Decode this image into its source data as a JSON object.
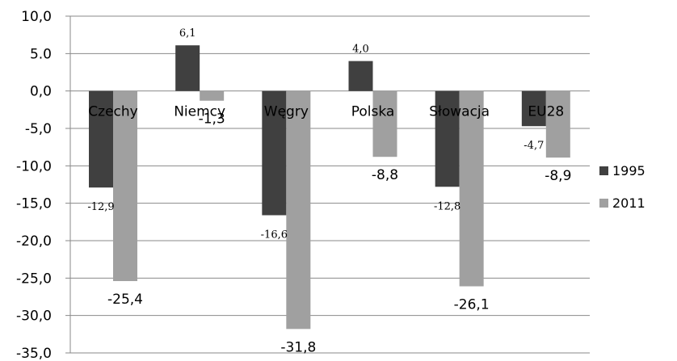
{
  "chart_data": {
    "type": "bar",
    "title": "",
    "xlabel": "",
    "ylabel": "",
    "categories": [
      "Czechy",
      "Niemcy",
      "Węgry",
      "Polska",
      "Słowacja",
      "EU28"
    ],
    "series": [
      {
        "name": "1995",
        "color": "#404040",
        "values": [
          -12.9,
          6.1,
          -16.6,
          4.0,
          -12.8,
          -4.7
        ],
        "labels": [
          "-12,9",
          "6,1",
          "-16,6",
          "4,0",
          "-12,8",
          "-4,7"
        ]
      },
      {
        "name": "2011",
        "color": "#a0a0a0",
        "values": [
          -25.4,
          -1.3,
          -31.8,
          -8.8,
          -26.1,
          -8.9
        ],
        "labels": [
          "-25,4",
          "-1,3",
          "-31,8",
          "-8,8",
          "-26,1",
          "-8,9"
        ]
      }
    ],
    "ylim": [
      -35,
      10
    ],
    "yticks": [
      10,
      5,
      0,
      -5,
      -10,
      -15,
      -20,
      -25,
      -30,
      -35
    ],
    "ytick_labels": [
      "10,0",
      "5.0",
      "0,0",
      "-5,0",
      "-10,0",
      "-15,0",
      "-20,0",
      "-25,0",
      "-30,0",
      "-35,0"
    ],
    "grid": true,
    "legend_position": "right"
  }
}
